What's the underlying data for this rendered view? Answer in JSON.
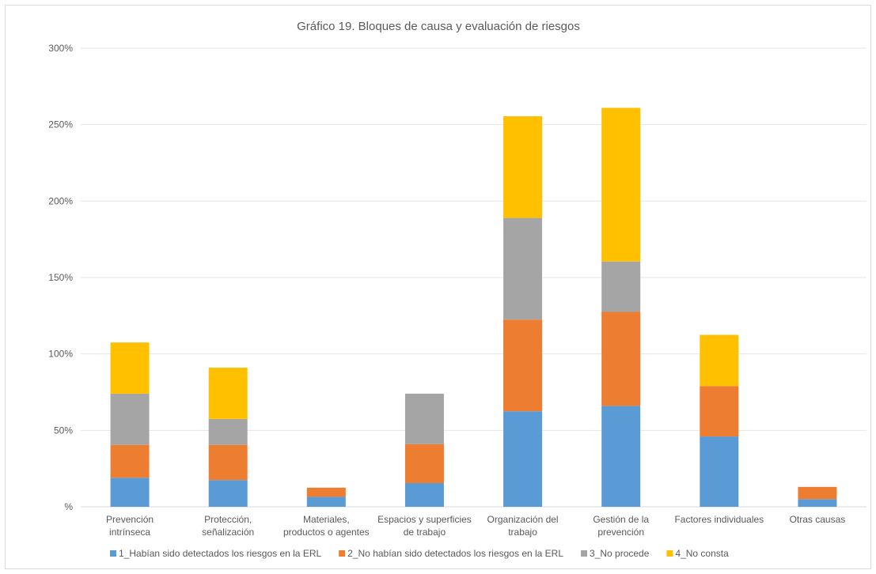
{
  "chart_data": {
    "type": "bar",
    "stacked": true,
    "title": "Gráfico 19. Bloques de causa y evaluación de riesgos",
    "xlabel": "",
    "ylabel": "",
    "ylim": [
      0,
      300
    ],
    "y_ticks": [
      "%",
      "50%",
      "100%",
      "150%",
      "200%",
      "250%",
      "300%"
    ],
    "y_tick_values": [
      0,
      50,
      100,
      150,
      200,
      250,
      300
    ],
    "grid": true,
    "legend_position": "bottom",
    "categories": [
      [
        "Prevención",
        "intrínseca"
      ],
      [
        "Protección,",
        "señalización"
      ],
      [
        "Materiales,",
        "productos o agentes"
      ],
      [
        "Espacios y superficies",
        "de trabajo"
      ],
      [
        "Organización del",
        "trabajo"
      ],
      [
        "Gestión de la",
        "prevención"
      ],
      [
        "Factores individuales"
      ],
      [
        "Otras causas"
      ]
    ],
    "series": [
      {
        "name": "1_Habían sido detectados los riesgos en la ERL",
        "color": "#5b9bd5",
        "values": [
          19,
          17.5,
          6.5,
          15.5,
          62.5,
          66,
          46,
          5
        ]
      },
      {
        "name": "2_No habían sido detectados los riesgos en la ERL",
        "color": "#ed7d31",
        "values": [
          21.5,
          23,
          6,
          25.5,
          60,
          61.5,
          33,
          8
        ]
      },
      {
        "name": "3_No procede",
        "color": "#a5a5a5",
        "values": [
          33.5,
          17,
          0,
          33,
          66.5,
          33,
          0,
          0
        ]
      },
      {
        "name": "4_No consta",
        "color": "#ffc000",
        "values": [
          33.5,
          33.5,
          0,
          0,
          66.5,
          100.5,
          33.5,
          0
        ]
      }
    ]
  }
}
